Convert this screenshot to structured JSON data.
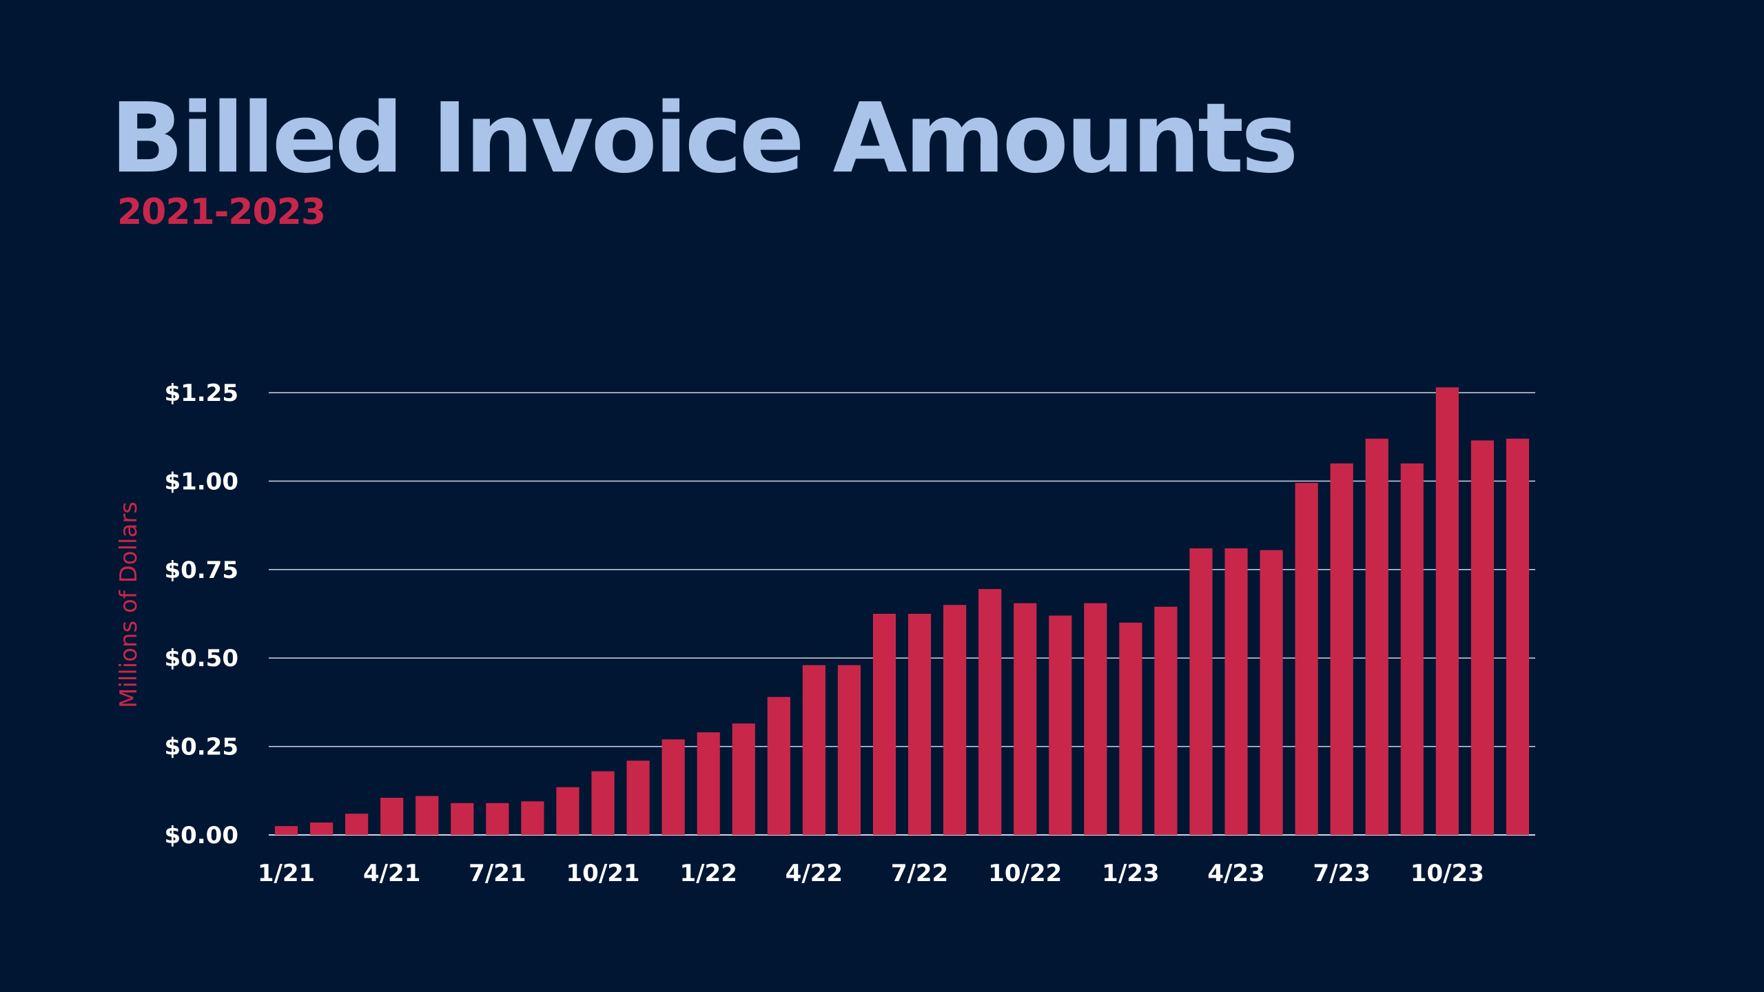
{
  "title": "Billed Invoice Amounts",
  "subtitle": "2021-2023",
  "colors": {
    "background": "#011633",
    "title": "#a9c4e8",
    "accent": "#c8274a",
    "text": "#ffffff",
    "grid": "#d0d8e6"
  },
  "chart_data": {
    "type": "bar",
    "title": "Billed Invoice Amounts",
    "subtitle": "2021-2023",
    "xlabel": "",
    "ylabel": "Millions of Dollars",
    "ylim": [
      0,
      1.25
    ],
    "grid": true,
    "legend": "none",
    "yticks": [
      {
        "value": 0,
        "label": "$0.00"
      },
      {
        "value": 0.25,
        "label": "$0.25"
      },
      {
        "value": 0.5,
        "label": "$0.50"
      },
      {
        "value": 0.75,
        "label": "$0.75"
      },
      {
        "value": 1.0,
        "label": "$1.00"
      },
      {
        "value": 1.25,
        "label": "$1.25"
      }
    ],
    "xticks": [
      {
        "index": 0,
        "label": "1/21"
      },
      {
        "index": 3,
        "label": "4/21"
      },
      {
        "index": 6,
        "label": "7/21"
      },
      {
        "index": 9,
        "label": "10/21"
      },
      {
        "index": 12,
        "label": "1/22"
      },
      {
        "index": 15,
        "label": "4/22"
      },
      {
        "index": 18,
        "label": "7/22"
      },
      {
        "index": 21,
        "label": "10/22"
      },
      {
        "index": 24,
        "label": "1/23"
      },
      {
        "index": 27,
        "label": "4/23"
      },
      {
        "index": 30,
        "label": "7/23"
      },
      {
        "index": 33,
        "label": "10/23"
      }
    ],
    "categories": [
      "1/21",
      "2/21",
      "3/21",
      "4/21",
      "5/21",
      "6/21",
      "7/21",
      "8/21",
      "9/21",
      "10/21",
      "11/21",
      "12/21",
      "1/22",
      "2/22",
      "3/22",
      "4/22",
      "5/22",
      "6/22",
      "7/22",
      "8/22",
      "9/22",
      "10/22",
      "11/22",
      "12/22",
      "1/23",
      "2/23",
      "3/23",
      "4/23",
      "5/23",
      "6/23",
      "7/23",
      "8/23",
      "9/23",
      "10/23",
      "11/23",
      "12/23"
    ],
    "values": [
      0.025,
      0.035,
      0.06,
      0.105,
      0.11,
      0.09,
      0.09,
      0.095,
      0.135,
      0.18,
      0.21,
      0.27,
      0.29,
      0.315,
      0.39,
      0.48,
      0.48,
      0.625,
      0.625,
      0.65,
      0.695,
      0.655,
      0.62,
      0.655,
      0.6,
      0.645,
      0.81,
      0.81,
      0.805,
      0.995,
      1.05,
      1.12,
      1.05,
      1.265,
      1.115,
      1.12
    ]
  }
}
